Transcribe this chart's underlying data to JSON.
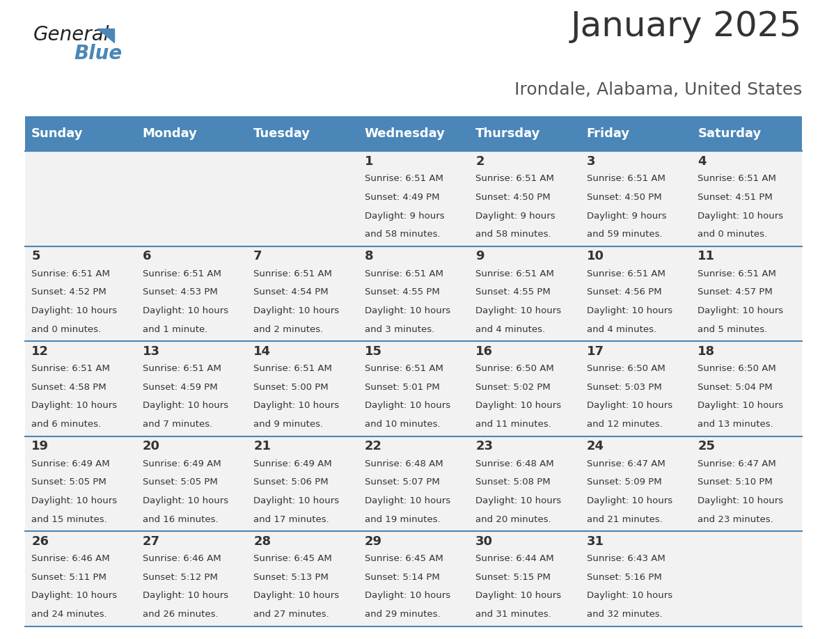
{
  "title": "January 2025",
  "subtitle": "Irondale, Alabama, United States",
  "header_color": "#4A86B8",
  "header_text_color": "#FFFFFF",
  "cell_bg_color": "#F2F2F2",
  "border_color": "#4A86B8",
  "day_headers": [
    "Sunday",
    "Monday",
    "Tuesday",
    "Wednesday",
    "Thursday",
    "Friday",
    "Saturday"
  ],
  "days": [
    {
      "day": null,
      "sunrise": null,
      "sunset": null,
      "daylight": null
    },
    {
      "day": null,
      "sunrise": null,
      "sunset": null,
      "daylight": null
    },
    {
      "day": null,
      "sunrise": null,
      "sunset": null,
      "daylight": null
    },
    {
      "day": 1,
      "sunrise": "6:51 AM",
      "sunset": "4:49 PM",
      "daylight": "9 hours\nand 58 minutes."
    },
    {
      "day": 2,
      "sunrise": "6:51 AM",
      "sunset": "4:50 PM",
      "daylight": "9 hours\nand 58 minutes."
    },
    {
      "day": 3,
      "sunrise": "6:51 AM",
      "sunset": "4:50 PM",
      "daylight": "9 hours\nand 59 minutes."
    },
    {
      "day": 4,
      "sunrise": "6:51 AM",
      "sunset": "4:51 PM",
      "daylight": "10 hours\nand 0 minutes."
    },
    {
      "day": 5,
      "sunrise": "6:51 AM",
      "sunset": "4:52 PM",
      "daylight": "10 hours\nand 0 minutes."
    },
    {
      "day": 6,
      "sunrise": "6:51 AM",
      "sunset": "4:53 PM",
      "daylight": "10 hours\nand 1 minute."
    },
    {
      "day": 7,
      "sunrise": "6:51 AM",
      "sunset": "4:54 PM",
      "daylight": "10 hours\nand 2 minutes."
    },
    {
      "day": 8,
      "sunrise": "6:51 AM",
      "sunset": "4:55 PM",
      "daylight": "10 hours\nand 3 minutes."
    },
    {
      "day": 9,
      "sunrise": "6:51 AM",
      "sunset": "4:55 PM",
      "daylight": "10 hours\nand 4 minutes."
    },
    {
      "day": 10,
      "sunrise": "6:51 AM",
      "sunset": "4:56 PM",
      "daylight": "10 hours\nand 4 minutes."
    },
    {
      "day": 11,
      "sunrise": "6:51 AM",
      "sunset": "4:57 PM",
      "daylight": "10 hours\nand 5 minutes."
    },
    {
      "day": 12,
      "sunrise": "6:51 AM",
      "sunset": "4:58 PM",
      "daylight": "10 hours\nand 6 minutes."
    },
    {
      "day": 13,
      "sunrise": "6:51 AM",
      "sunset": "4:59 PM",
      "daylight": "10 hours\nand 7 minutes."
    },
    {
      "day": 14,
      "sunrise": "6:51 AM",
      "sunset": "5:00 PM",
      "daylight": "10 hours\nand 9 minutes."
    },
    {
      "day": 15,
      "sunrise": "6:51 AM",
      "sunset": "5:01 PM",
      "daylight": "10 hours\nand 10 minutes."
    },
    {
      "day": 16,
      "sunrise": "6:50 AM",
      "sunset": "5:02 PM",
      "daylight": "10 hours\nand 11 minutes."
    },
    {
      "day": 17,
      "sunrise": "6:50 AM",
      "sunset": "5:03 PM",
      "daylight": "10 hours\nand 12 minutes."
    },
    {
      "day": 18,
      "sunrise": "6:50 AM",
      "sunset": "5:04 PM",
      "daylight": "10 hours\nand 13 minutes."
    },
    {
      "day": 19,
      "sunrise": "6:49 AM",
      "sunset": "5:05 PM",
      "daylight": "10 hours\nand 15 minutes."
    },
    {
      "day": 20,
      "sunrise": "6:49 AM",
      "sunset": "5:05 PM",
      "daylight": "10 hours\nand 16 minutes."
    },
    {
      "day": 21,
      "sunrise": "6:49 AM",
      "sunset": "5:06 PM",
      "daylight": "10 hours\nand 17 minutes."
    },
    {
      "day": 22,
      "sunrise": "6:48 AM",
      "sunset": "5:07 PM",
      "daylight": "10 hours\nand 19 minutes."
    },
    {
      "day": 23,
      "sunrise": "6:48 AM",
      "sunset": "5:08 PM",
      "daylight": "10 hours\nand 20 minutes."
    },
    {
      "day": 24,
      "sunrise": "6:47 AM",
      "sunset": "5:09 PM",
      "daylight": "10 hours\nand 21 minutes."
    },
    {
      "day": 25,
      "sunrise": "6:47 AM",
      "sunset": "5:10 PM",
      "daylight": "10 hours\nand 23 minutes."
    },
    {
      "day": 26,
      "sunrise": "6:46 AM",
      "sunset": "5:11 PM",
      "daylight": "10 hours\nand 24 minutes."
    },
    {
      "day": 27,
      "sunrise": "6:46 AM",
      "sunset": "5:12 PM",
      "daylight": "10 hours\nand 26 minutes."
    },
    {
      "day": 28,
      "sunrise": "6:45 AM",
      "sunset": "5:13 PM",
      "daylight": "10 hours\nand 27 minutes."
    },
    {
      "day": 29,
      "sunrise": "6:45 AM",
      "sunset": "5:14 PM",
      "daylight": "10 hours\nand 29 minutes."
    },
    {
      "day": 30,
      "sunrise": "6:44 AM",
      "sunset": "5:15 PM",
      "daylight": "10 hours\nand 31 minutes."
    },
    {
      "day": 31,
      "sunrise": "6:43 AM",
      "sunset": "5:16 PM",
      "daylight": "10 hours\nand 32 minutes."
    },
    {
      "day": null,
      "sunrise": null,
      "sunset": null,
      "daylight": null
    }
  ],
  "logo_text_general": "General",
  "logo_text_blue": "Blue",
  "title_fontsize": 36,
  "subtitle_fontsize": 18,
  "header_fontsize": 13,
  "day_number_fontsize": 13,
  "cell_text_fontsize": 9.5
}
